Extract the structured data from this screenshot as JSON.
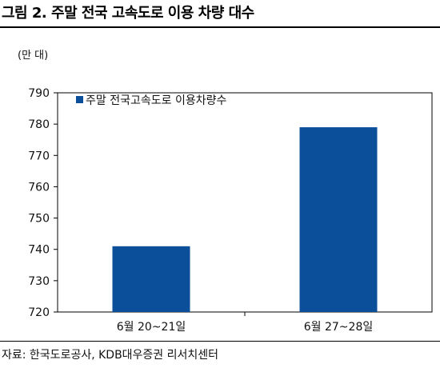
{
  "figure": {
    "title": "그림 2. 주말 전국 고속도로 이용 차량 대수",
    "unit": "(만 대)",
    "source": "자료: 한국도로공사, KDB대우증권 리서치센터"
  },
  "chart_data": {
    "type": "bar",
    "categories": [
      "6월 20~21일",
      "6월 27~28일"
    ],
    "series": [
      {
        "name": "주말 전국고속도로 이용차량수",
        "values": [
          741,
          779
        ],
        "color": "#0b4f9a"
      }
    ],
    "ylim": [
      720,
      790
    ],
    "yticks": [
      720,
      730,
      740,
      750,
      760,
      770,
      780,
      790
    ],
    "grid": false,
    "legend": "top-left"
  }
}
